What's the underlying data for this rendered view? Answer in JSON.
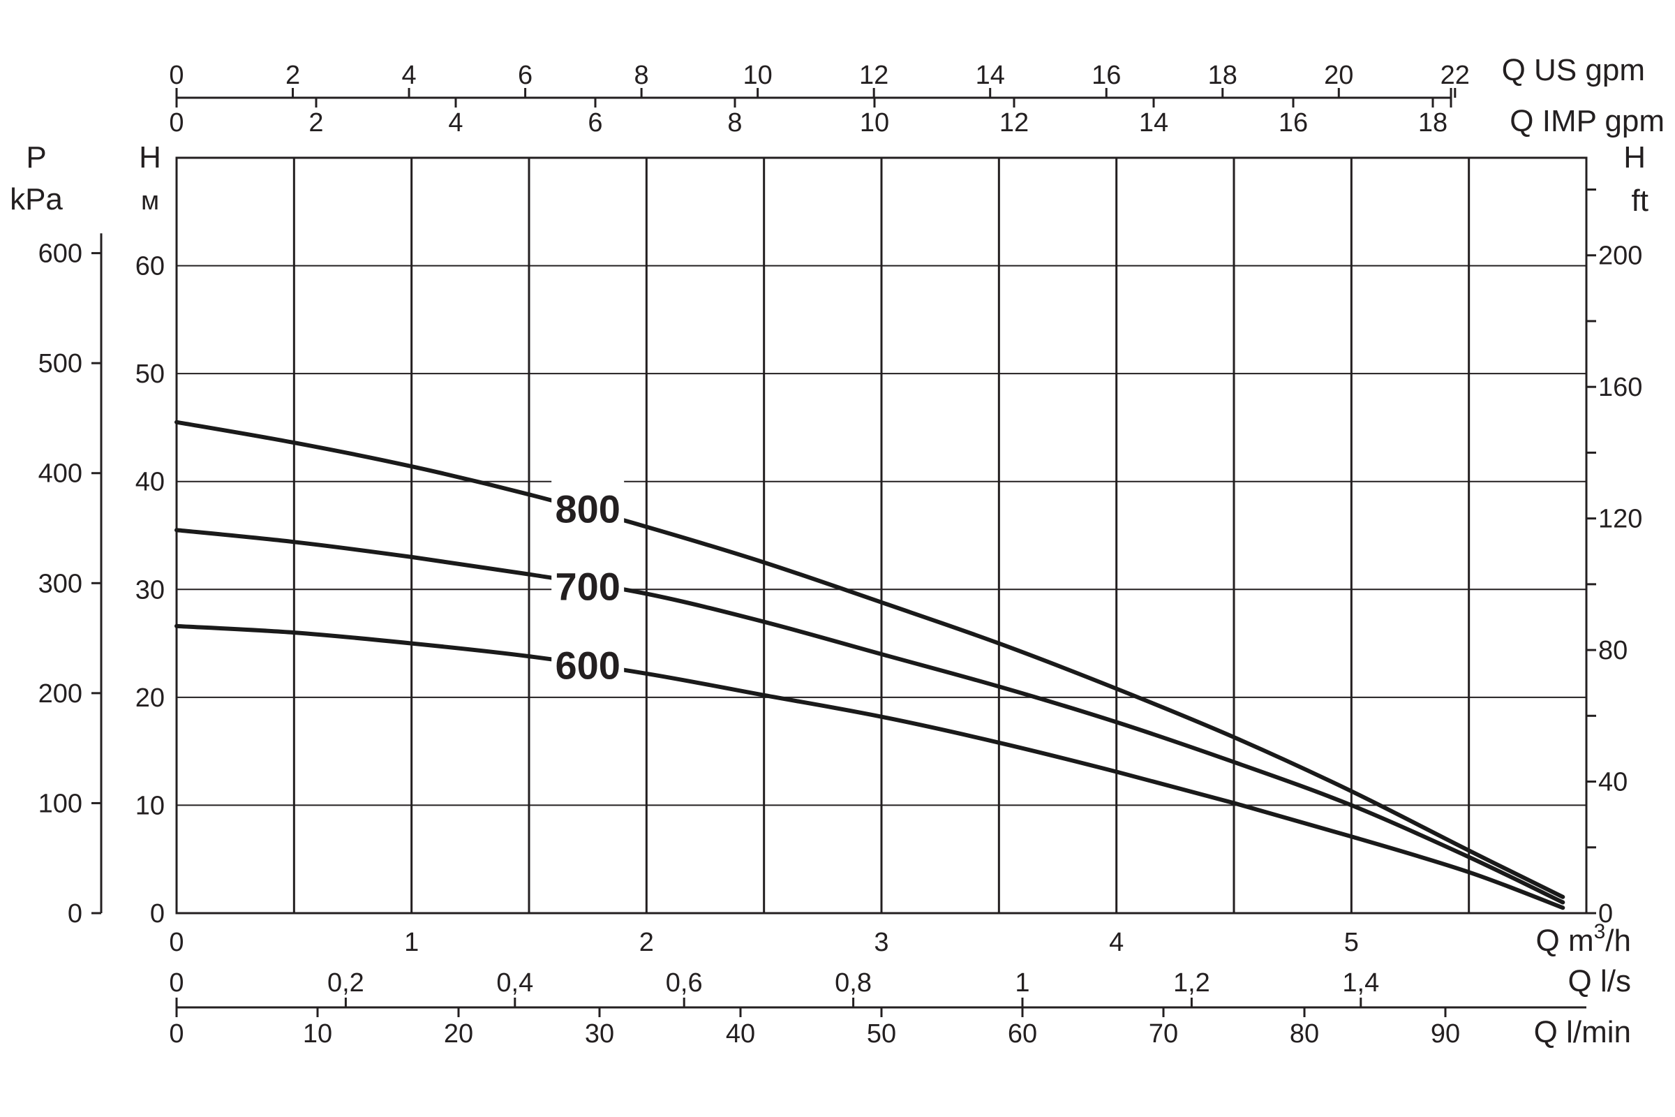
{
  "chart_data": {
    "type": "line",
    "x": [
      0,
      0.5,
      1,
      1.5,
      2,
      2.5,
      3,
      3.5,
      4,
      4.5,
      5,
      5.5,
      5.9
    ],
    "series": [
      {
        "name": "800",
        "values": [
          45.5,
          43.6,
          41.4,
          38.8,
          35.8,
          32.5,
          28.8,
          25.0,
          20.8,
          16.3,
          11.3,
          5.8,
          1.5
        ]
      },
      {
        "name": "700",
        "values": [
          35.5,
          34.4,
          33.0,
          31.4,
          29.6,
          27.0,
          24.0,
          21.0,
          17.7,
          14.0,
          10.0,
          5.2,
          1.0
        ]
      },
      {
        "name": "600",
        "values": [
          26.6,
          26.0,
          25.0,
          23.8,
          22.2,
          20.2,
          18.2,
          15.8,
          13.1,
          10.2,
          7.1,
          3.8,
          0.5
        ]
      }
    ],
    "xlim": [
      0,
      6
    ],
    "ylim": [
      0,
      70
    ],
    "grid": true,
    "axes": {
      "bottom_main": {
        "unit": "Q m³/h",
        "ticks": [
          "0",
          "1",
          "2",
          "3",
          "4",
          "5"
        ],
        "values": [
          0,
          1,
          2,
          3,
          4,
          5
        ]
      },
      "bottom_ls": {
        "unit": "Q l/s",
        "ticks": [
          "0",
          "0,2",
          "0,4",
          "0,6",
          "0,8",
          "1",
          "1,2",
          "1,4"
        ],
        "values": [
          0,
          0.2,
          0.4,
          0.6,
          0.8,
          1.0,
          1.2,
          1.4
        ]
      },
      "bottom_lmin": {
        "unit": "Q l/min",
        "ticks": [
          "0",
          "10",
          "20",
          "30",
          "40",
          "50",
          "60",
          "70",
          "80",
          "90"
        ],
        "values": [
          0,
          10,
          20,
          30,
          40,
          50,
          60,
          70,
          80,
          90
        ]
      },
      "top_us": {
        "unit": "Q US gpm",
        "ticks": [
          "0",
          "2",
          "4",
          "6",
          "8",
          "10",
          "12",
          "14",
          "16",
          "18",
          "20",
          "22"
        ],
        "values": [
          0,
          2,
          4,
          6,
          8,
          10,
          12,
          14,
          16,
          18,
          20,
          22
        ]
      },
      "top_imp": {
        "unit": "Q IMP gpm",
        "ticks": [
          "0",
          "2",
          "4",
          "6",
          "8",
          "10",
          "12",
          "14",
          "16",
          "18"
        ],
        "values": [
          0,
          2,
          4,
          6,
          8,
          10,
          12,
          14,
          16,
          18
        ]
      },
      "left_m": {
        "label": "H",
        "unit": "м",
        "ticks": [
          "0",
          "10",
          "20",
          "30",
          "40",
          "50",
          "60"
        ],
        "values": [
          0,
          10,
          20,
          30,
          40,
          50,
          60
        ]
      },
      "left_kpa": {
        "label": "P",
        "unit": "kPa",
        "ticks": [
          "0",
          "100",
          "200",
          "300",
          "400",
          "500",
          "600"
        ],
        "values": [
          0,
          100,
          200,
          300,
          400,
          500,
          600
        ]
      },
      "right_ft": {
        "label": "H",
        "unit": "ft",
        "ticks": [
          "0",
          "40",
          "80",
          "120",
          "160",
          "200"
        ],
        "values": [
          0,
          40,
          80,
          120,
          160,
          200
        ]
      }
    },
    "curve_labels": [
      {
        "text": "800",
        "x": 1.75,
        "y": 37.5
      },
      {
        "text": "700",
        "x": 1.75,
        "y": 30.3
      },
      {
        "text": "600",
        "x": 1.75,
        "y": 23.0
      }
    ],
    "colors": {
      "line": "#1a1a1a",
      "grid": "#231f20",
      "text": "#231f20"
    }
  }
}
